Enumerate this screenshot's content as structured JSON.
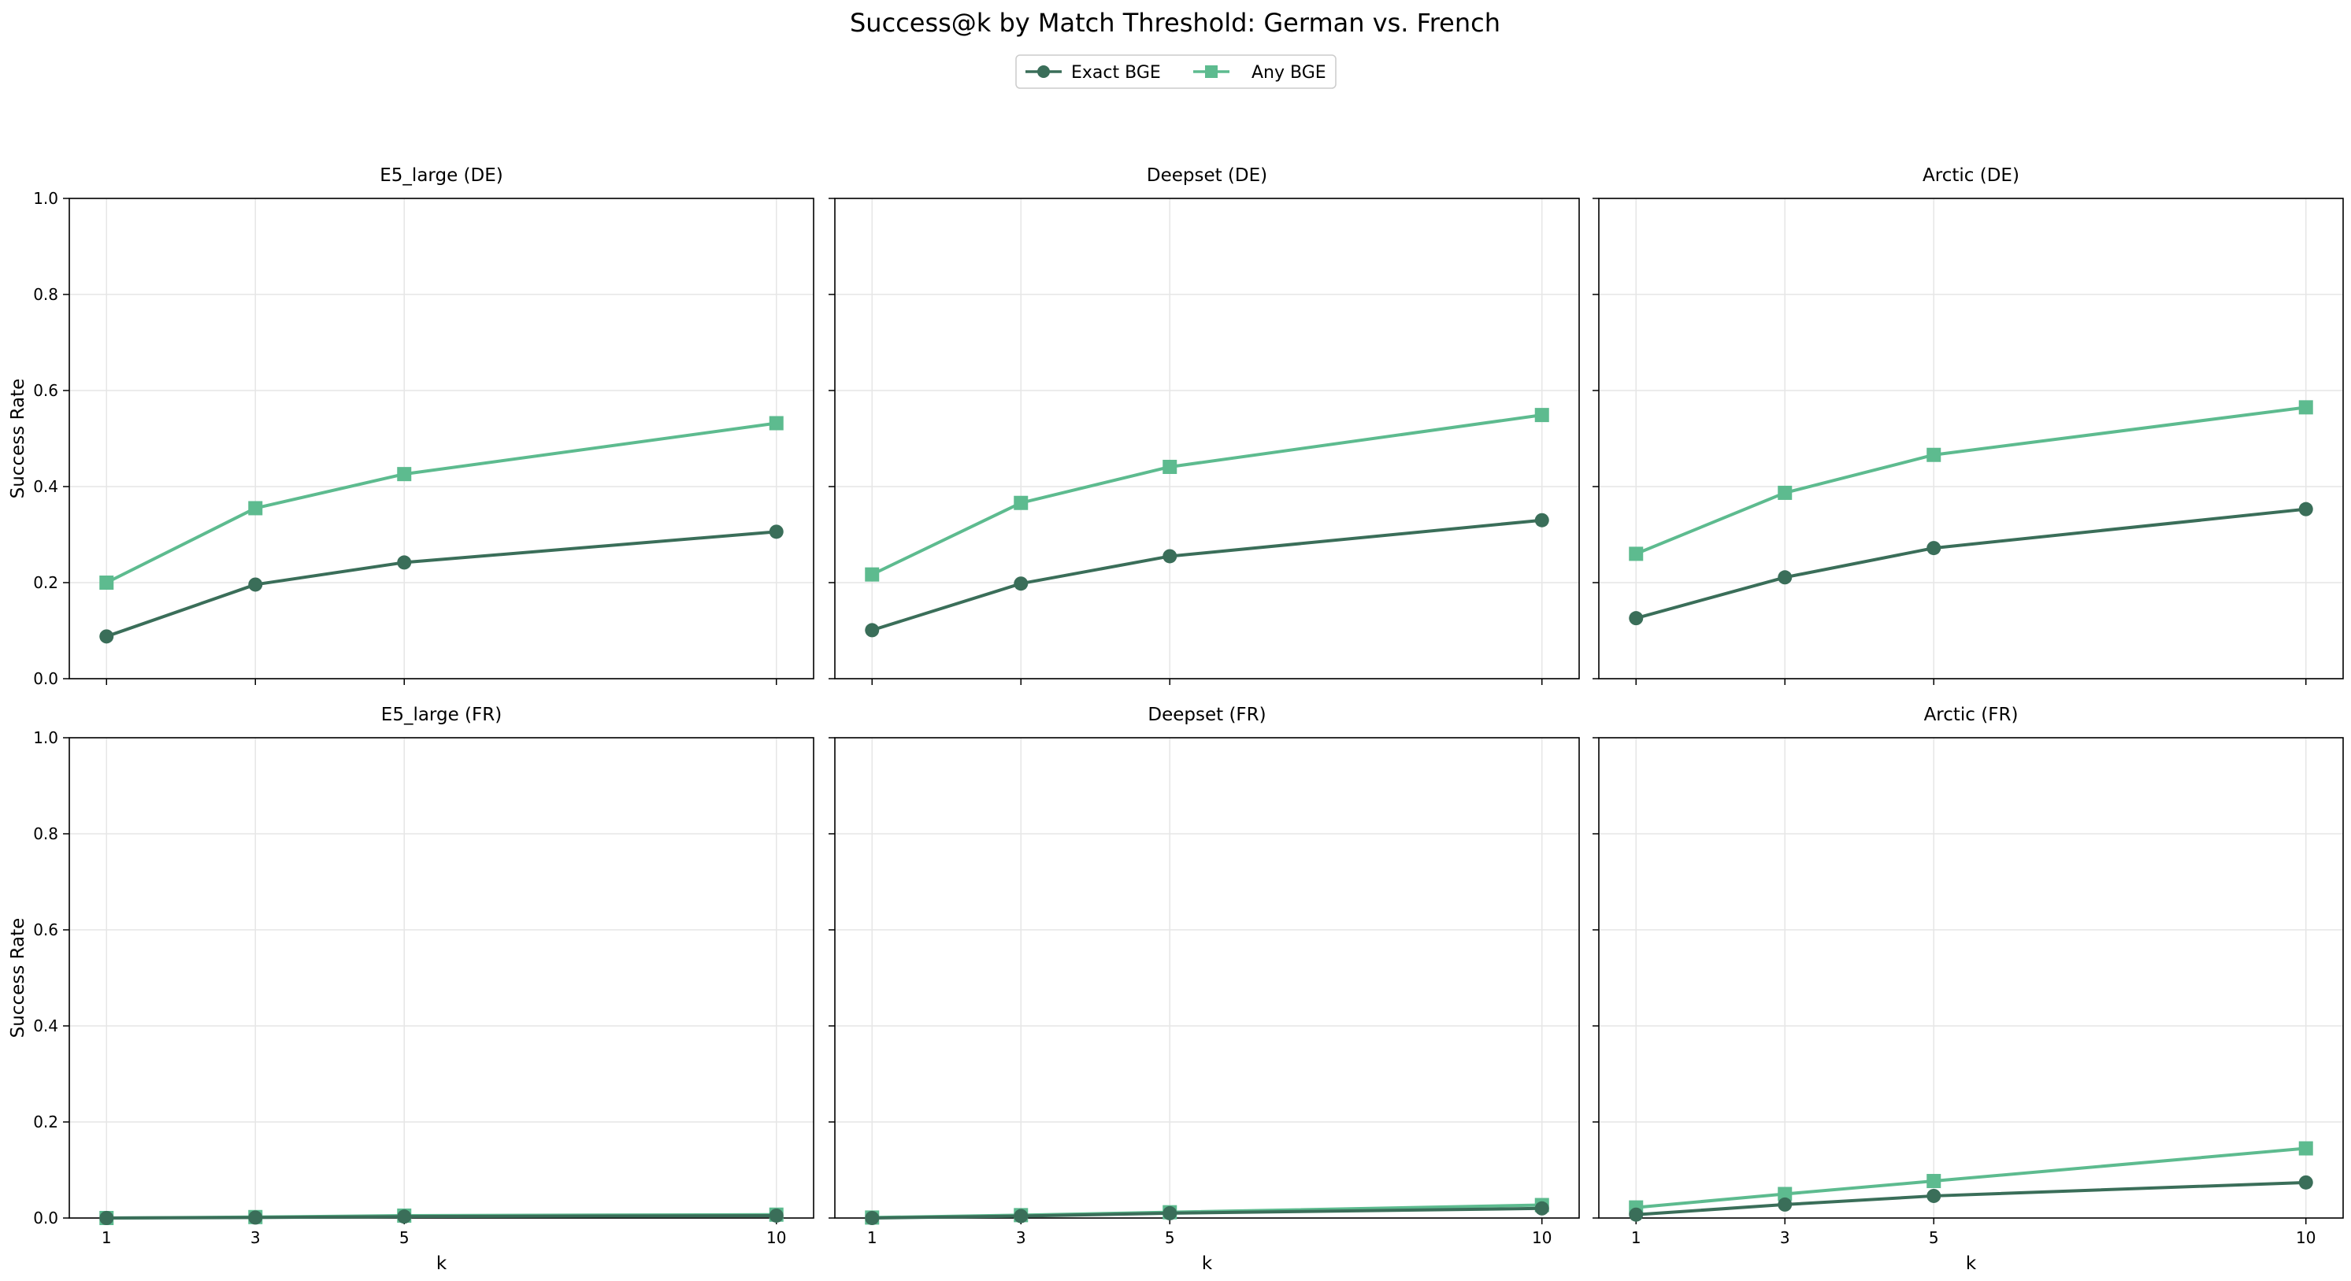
{
  "title": "Success@k by Match Threshold: German vs. French",
  "colors": {
    "exact": "#3a6e59",
    "any": "#5dbb8f",
    "grid": "#e6e6e6",
    "axes": "#000000",
    "legend_border": "#cccccc"
  },
  "chart_data": {
    "type": "line",
    "title": "Success@k by Match Threshold: German vs. French",
    "legend": {
      "placement": "top-center",
      "entries": [
        {
          "name": "Exact BGE",
          "marker": "circle",
          "color_key": "exact"
        },
        {
          "name": "Any BGE",
          "marker": "square",
          "color_key": "any"
        }
      ]
    },
    "x": [
      1,
      3,
      5,
      10
    ],
    "xticks": [
      "1",
      "3",
      "5",
      "10"
    ],
    "xlim": [
      0.5,
      10.5
    ],
    "ylim": [
      0,
      1.0
    ],
    "yticks": [
      "0.0",
      "0.2",
      "0.4",
      "0.6",
      "0.8",
      "1.0"
    ],
    "grid": true,
    "ylabel": "Success Rate",
    "xlabel": "k",
    "panels": [
      {
        "title": "E5_large (DE)",
        "series": [
          {
            "name": "Exact BGE",
            "values": [
              0.088,
              0.196,
              0.242,
              0.306
            ]
          },
          {
            "name": "Any BGE",
            "values": [
              0.2,
              0.355,
              0.426,
              0.532
            ]
          }
        ]
      },
      {
        "title": "Deepset (DE)",
        "series": [
          {
            "name": "Exact BGE",
            "values": [
              0.101,
              0.198,
              0.255,
              0.33
            ]
          },
          {
            "name": "Any BGE",
            "values": [
              0.217,
              0.366,
              0.441,
              0.549
            ]
          }
        ]
      },
      {
        "title": "Arctic (DE)",
        "series": [
          {
            "name": "Exact BGE",
            "values": [
              0.126,
              0.211,
              0.272,
              0.353
            ]
          },
          {
            "name": "Any BGE",
            "values": [
              0.26,
              0.387,
              0.466,
              0.565
            ]
          }
        ]
      },
      {
        "title": "E5_large (FR)",
        "series": [
          {
            "name": "Exact BGE",
            "values": [
              0.0,
              0.001,
              0.003,
              0.005
            ]
          },
          {
            "name": "Any BGE",
            "values": [
              0.0,
              0.002,
              0.005,
              0.007
            ]
          }
        ]
      },
      {
        "title": "Deepset (FR)",
        "series": [
          {
            "name": "Exact BGE",
            "values": [
              0.0,
              0.004,
              0.01,
              0.02
            ]
          },
          {
            "name": "Any BGE",
            "values": [
              0.001,
              0.006,
              0.012,
              0.027
            ]
          }
        ]
      },
      {
        "title": "Arctic (FR)",
        "series": [
          {
            "name": "Exact BGE",
            "values": [
              0.007,
              0.028,
              0.046,
              0.074
            ]
          },
          {
            "name": "Any BGE",
            "values": [
              0.022,
              0.05,
              0.077,
              0.145
            ]
          }
        ]
      }
    ]
  }
}
